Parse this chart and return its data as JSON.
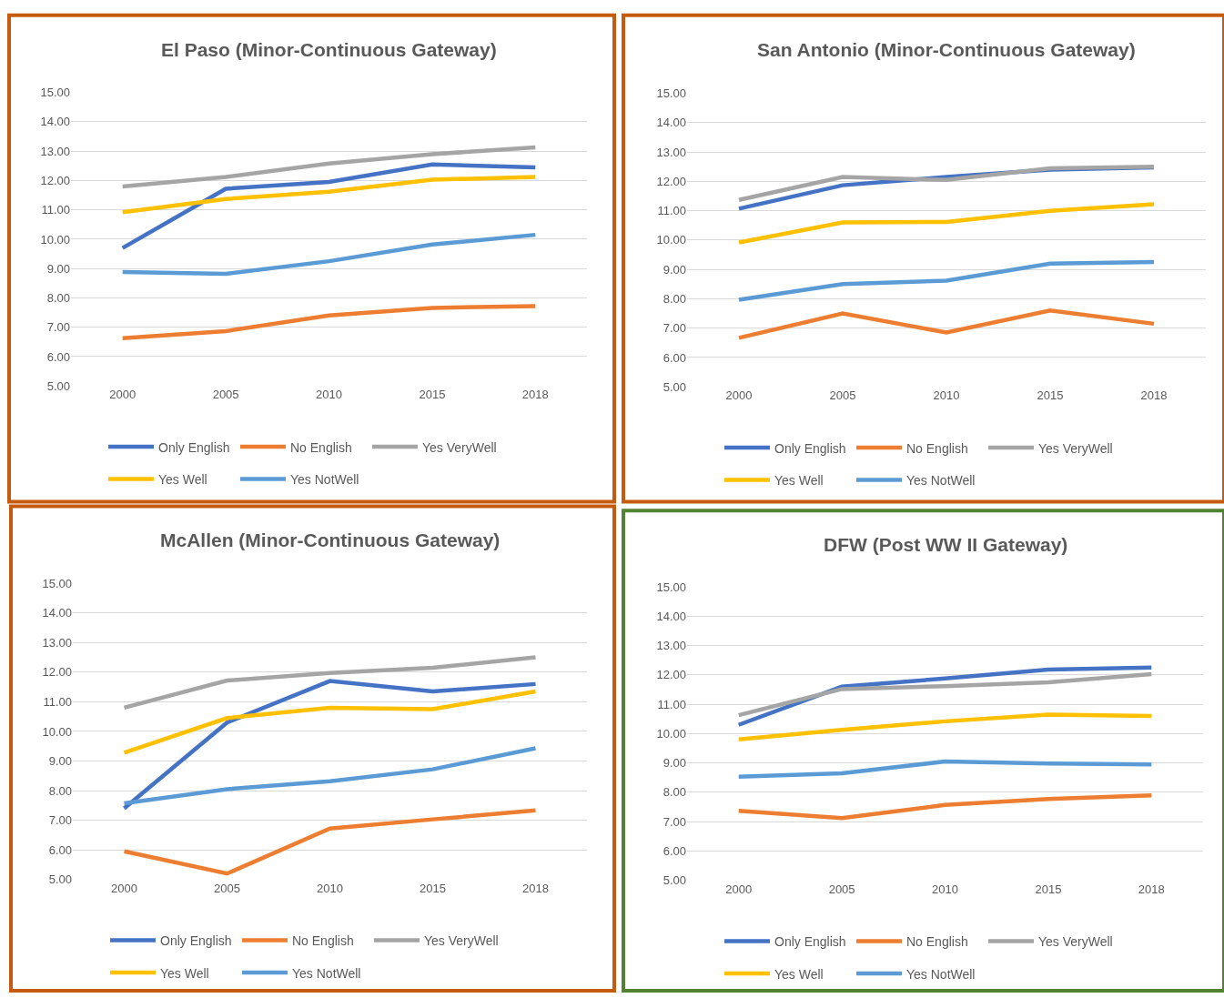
{
  "chart_data": [
    {
      "type": "line",
      "title": "El Paso (Minor-Continuous Gateway)",
      "categories": [
        "2000",
        "2005",
        "2010",
        "2015",
        "2018"
      ],
      "ylim": [
        5,
        15
      ],
      "yticks": [
        {
          "value": 5,
          "label": "5.00"
        },
        {
          "value": 6,
          "label": "6.00"
        },
        {
          "value": 7,
          "label": "7.00"
        },
        {
          "value": 8,
          "label": "8.00"
        },
        {
          "value": 9,
          "label": "9.00"
        },
        {
          "value": 10,
          "label": "10.00"
        },
        {
          "value": 11,
          "label": "11.00"
        },
        {
          "value": 12,
          "label": "12.00"
        },
        {
          "value": 13,
          "label": "13.00"
        },
        {
          "value": 14,
          "label": "14.00"
        },
        {
          "value": 15,
          "label": "15.00"
        }
      ],
      "grid": "y",
      "legend": "bottom",
      "marker": "none",
      "line_style": "solid",
      "series": [
        {
          "name": "Only English",
          "color": "#4472c4",
          "values": [
            9.7,
            11.72,
            11.95,
            12.55,
            12.45
          ]
        },
        {
          "name": "No English",
          "color": "#ed7d31",
          "values": [
            6.63,
            6.87,
            7.4,
            7.66,
            7.72
          ]
        },
        {
          "name": "Yes VeryWell",
          "color": "#a5a5a5",
          "values": [
            11.8,
            12.12,
            12.58,
            12.9,
            13.13
          ]
        },
        {
          "name": "Yes Well",
          "color": "#ffc000",
          "values": [
            10.92,
            11.37,
            11.62,
            12.03,
            12.12
          ]
        },
        {
          "name": "Yes NotWell",
          "color": "#5b9bd5",
          "values": [
            8.88,
            8.82,
            9.25,
            9.82,
            10.15
          ]
        }
      ]
    },
    {
      "type": "line",
      "title": "San Antonio (Minor-Continuous Gateway)",
      "categories": [
        "2000",
        "2005",
        "2010",
        "2015",
        "2018"
      ],
      "ylim": [
        5,
        15
      ],
      "yticks": [
        {
          "value": 5,
          "label": "5.00"
        },
        {
          "value": 6,
          "label": "6.00"
        },
        {
          "value": 7,
          "label": "7.00"
        },
        {
          "value": 8,
          "label": "8.00"
        },
        {
          "value": 9,
          "label": "9.00"
        },
        {
          "value": 10,
          "label": "10.00"
        },
        {
          "value": 11,
          "label": "11.00"
        },
        {
          "value": 12,
          "label": "12.00"
        },
        {
          "value": 13,
          "label": "13.00"
        },
        {
          "value": 14,
          "label": "14.00"
        },
        {
          "value": 15,
          "label": "15.00"
        }
      ],
      "grid": "y",
      "legend": "bottom",
      "marker": "none",
      "line_style": "solid",
      "series": [
        {
          "name": "Only English",
          "color": "#4472c4",
          "values": [
            11.07,
            11.87,
            12.15,
            12.4,
            12.48
          ]
        },
        {
          "name": "No English",
          "color": "#ed7d31",
          "values": [
            6.67,
            7.5,
            6.85,
            7.6,
            7.15
          ]
        },
        {
          "name": "Yes VeryWell",
          "color": "#a5a5a5",
          "values": [
            11.37,
            12.15,
            12.05,
            12.45,
            12.5
          ]
        },
        {
          "name": "Yes Well",
          "color": "#ffc000",
          "values": [
            9.92,
            10.6,
            10.62,
            11.0,
            11.22
          ]
        },
        {
          "name": "Yes NotWell",
          "color": "#5b9bd5",
          "values": [
            7.97,
            8.5,
            8.62,
            9.2,
            9.25
          ]
        }
      ]
    },
    {
      "type": "line",
      "title": "McAllen (Minor-Continuous Gateway)",
      "categories": [
        "2000",
        "2005",
        "2010",
        "2015",
        "2018"
      ],
      "ylim": [
        5,
        15
      ],
      "yticks": [
        {
          "value": 5,
          "label": "5.00"
        },
        {
          "value": 6,
          "label": "6.00"
        },
        {
          "value": 7,
          "label": "7.00"
        },
        {
          "value": 8,
          "label": "8.00"
        },
        {
          "value": 9,
          "label": "9.00"
        },
        {
          "value": 10,
          "label": "10.00"
        },
        {
          "value": 11,
          "label": "11.00"
        },
        {
          "value": 12,
          "label": "12.00"
        },
        {
          "value": 13,
          "label": "13.00"
        },
        {
          "value": 14,
          "label": "14.00"
        },
        {
          "value": 15,
          "label": "15.00"
        }
      ],
      "grid": "y",
      "legend": "bottom",
      "marker": "none",
      "line_style": "solid",
      "series": [
        {
          "name": "Only English",
          "color": "#4472c4",
          "values": [
            7.4,
            10.3,
            11.7,
            11.35,
            11.6
          ]
        },
        {
          "name": "No English",
          "color": "#ed7d31",
          "values": [
            5.95,
            5.2,
            6.72,
            7.03,
            7.33
          ]
        },
        {
          "name": "Yes VeryWell",
          "color": "#a5a5a5",
          "values": [
            10.8,
            11.72,
            11.97,
            12.15,
            12.5
          ]
        },
        {
          "name": "Yes Well",
          "color": "#ffc000",
          "values": [
            9.28,
            10.45,
            10.8,
            10.75,
            11.35
          ]
        },
        {
          "name": "Yes NotWell",
          "color": "#5b9bd5",
          "values": [
            7.57,
            8.05,
            8.32,
            8.72,
            9.43
          ]
        }
      ]
    },
    {
      "type": "line",
      "title": "DFW (Post WW II Gateway)",
      "categories": [
        "2000",
        "2005",
        "2010",
        "2015",
        "2018"
      ],
      "ylim": [
        5,
        15
      ],
      "yticks": [
        {
          "value": 5,
          "label": "5.00"
        },
        {
          "value": 6,
          "label": "6.00"
        },
        {
          "value": 7,
          "label": "7.00"
        },
        {
          "value": 8,
          "label": "8.00"
        },
        {
          "value": 9,
          "label": "9.00"
        },
        {
          "value": 10,
          "label": "10.00"
        },
        {
          "value": 11,
          "label": "11.00"
        },
        {
          "value": 12,
          "label": "12.00"
        },
        {
          "value": 13,
          "label": "13.00"
        },
        {
          "value": 14,
          "label": "14.00"
        },
        {
          "value": 15,
          "label": "15.00"
        }
      ],
      "grid": "y",
      "legend": "bottom",
      "marker": "none",
      "line_style": "solid",
      "series": [
        {
          "name": "Only English",
          "color": "#4472c4",
          "values": [
            10.3,
            11.6,
            11.88,
            12.18,
            12.25
          ]
        },
        {
          "name": "No English",
          "color": "#ed7d31",
          "values": [
            7.37,
            7.12,
            7.57,
            7.77,
            7.9
          ]
        },
        {
          "name": "Yes VeryWell",
          "color": "#a5a5a5",
          "values": [
            10.63,
            11.52,
            11.62,
            11.75,
            12.03
          ]
        },
        {
          "name": "Yes Well",
          "color": "#ffc000",
          "values": [
            9.8,
            10.13,
            10.42,
            10.65,
            10.6
          ]
        },
        {
          "name": "Yes NotWell",
          "color": "#5b9bd5",
          "values": [
            8.53,
            8.65,
            9.05,
            8.98,
            8.95
          ]
        }
      ]
    }
  ]
}
